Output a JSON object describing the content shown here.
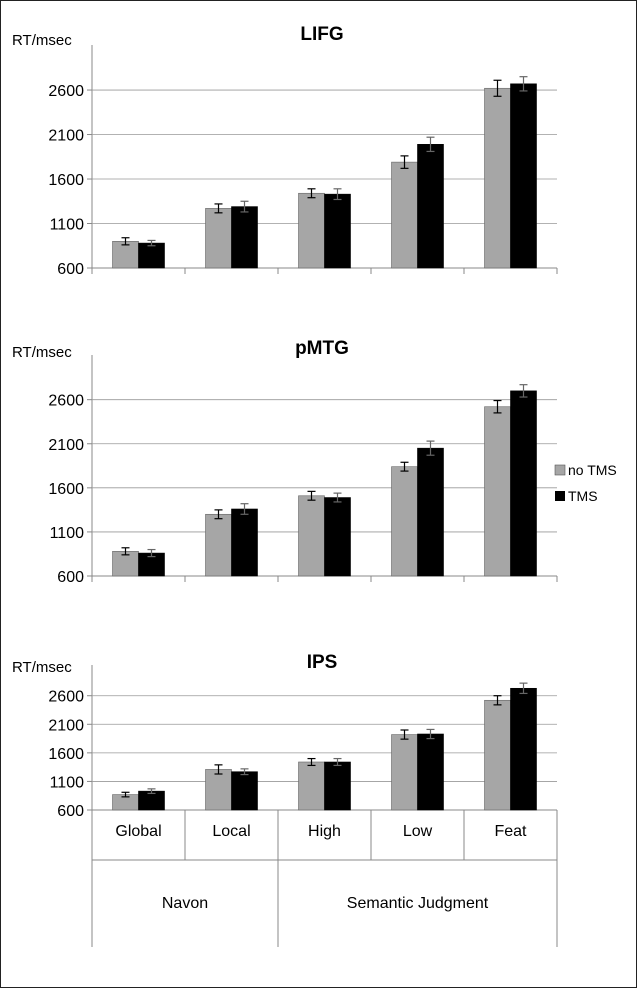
{
  "legend": [
    {
      "label": "no TMS",
      "color": "#a6a6a6"
    },
    {
      "label": "TMS",
      "color": "#000000"
    }
  ],
  "x_categories": [
    "Global",
    "Local",
    "High",
    "Low",
    "Feat"
  ],
  "x_groups": [
    {
      "label": "Navon",
      "categories": [
        "Global",
        "Local"
      ]
    },
    {
      "label": "Semantic Judgment",
      "categories": [
        "High",
        "Low",
        "Feat"
      ]
    }
  ],
  "chart_data": [
    {
      "type": "bar",
      "title": "LIFG",
      "ylabel": "RT/msec",
      "ylim": [
        600,
        3100
      ],
      "yticks": [
        "600",
        "1100",
        "1600",
        "2100",
        "2600"
      ],
      "categories": [
        "Global",
        "Local",
        "High",
        "Low",
        "Feat"
      ],
      "series": [
        {
          "name": "no TMS",
          "values": [
            900,
            1270,
            1440,
            1790,
            2620
          ],
          "errors": [
            40,
            50,
            50,
            70,
            90
          ]
        },
        {
          "name": "TMS",
          "values": [
            880,
            1290,
            1430,
            1990,
            2670
          ],
          "errors": [
            30,
            60,
            60,
            80,
            80
          ]
        }
      ]
    },
    {
      "type": "bar",
      "title": "pMTG",
      "ylabel": "RT/msec",
      "ylim": [
        600,
        3100
      ],
      "yticks": [
        "600",
        "1100",
        "1600",
        "2100",
        "2600"
      ],
      "categories": [
        "Global",
        "Local",
        "High",
        "Low",
        "Feat"
      ],
      "series": [
        {
          "name": "no TMS",
          "values": [
            880,
            1300,
            1510,
            1840,
            2520
          ],
          "errors": [
            40,
            50,
            50,
            50,
            70
          ]
        },
        {
          "name": "TMS",
          "values": [
            860,
            1360,
            1490,
            2050,
            2700
          ],
          "errors": [
            40,
            60,
            50,
            80,
            70
          ]
        }
      ]
    },
    {
      "type": "bar",
      "title": "IPS",
      "ylabel": "RT/msec",
      "ylim": [
        600,
        3100
      ],
      "yticks": [
        "600",
        "1100",
        "1600",
        "2100",
        "2600"
      ],
      "categories": [
        "Global",
        "Local",
        "High",
        "Low",
        "Feat"
      ],
      "series": [
        {
          "name": "no TMS",
          "values": [
            870,
            1310,
            1440,
            1920,
            2520
          ],
          "errors": [
            40,
            80,
            60,
            80,
            80
          ]
        },
        {
          "name": "TMS",
          "values": [
            930,
            1270,
            1440,
            1930,
            2730
          ],
          "errors": [
            40,
            50,
            60,
            80,
            90
          ]
        }
      ]
    }
  ]
}
